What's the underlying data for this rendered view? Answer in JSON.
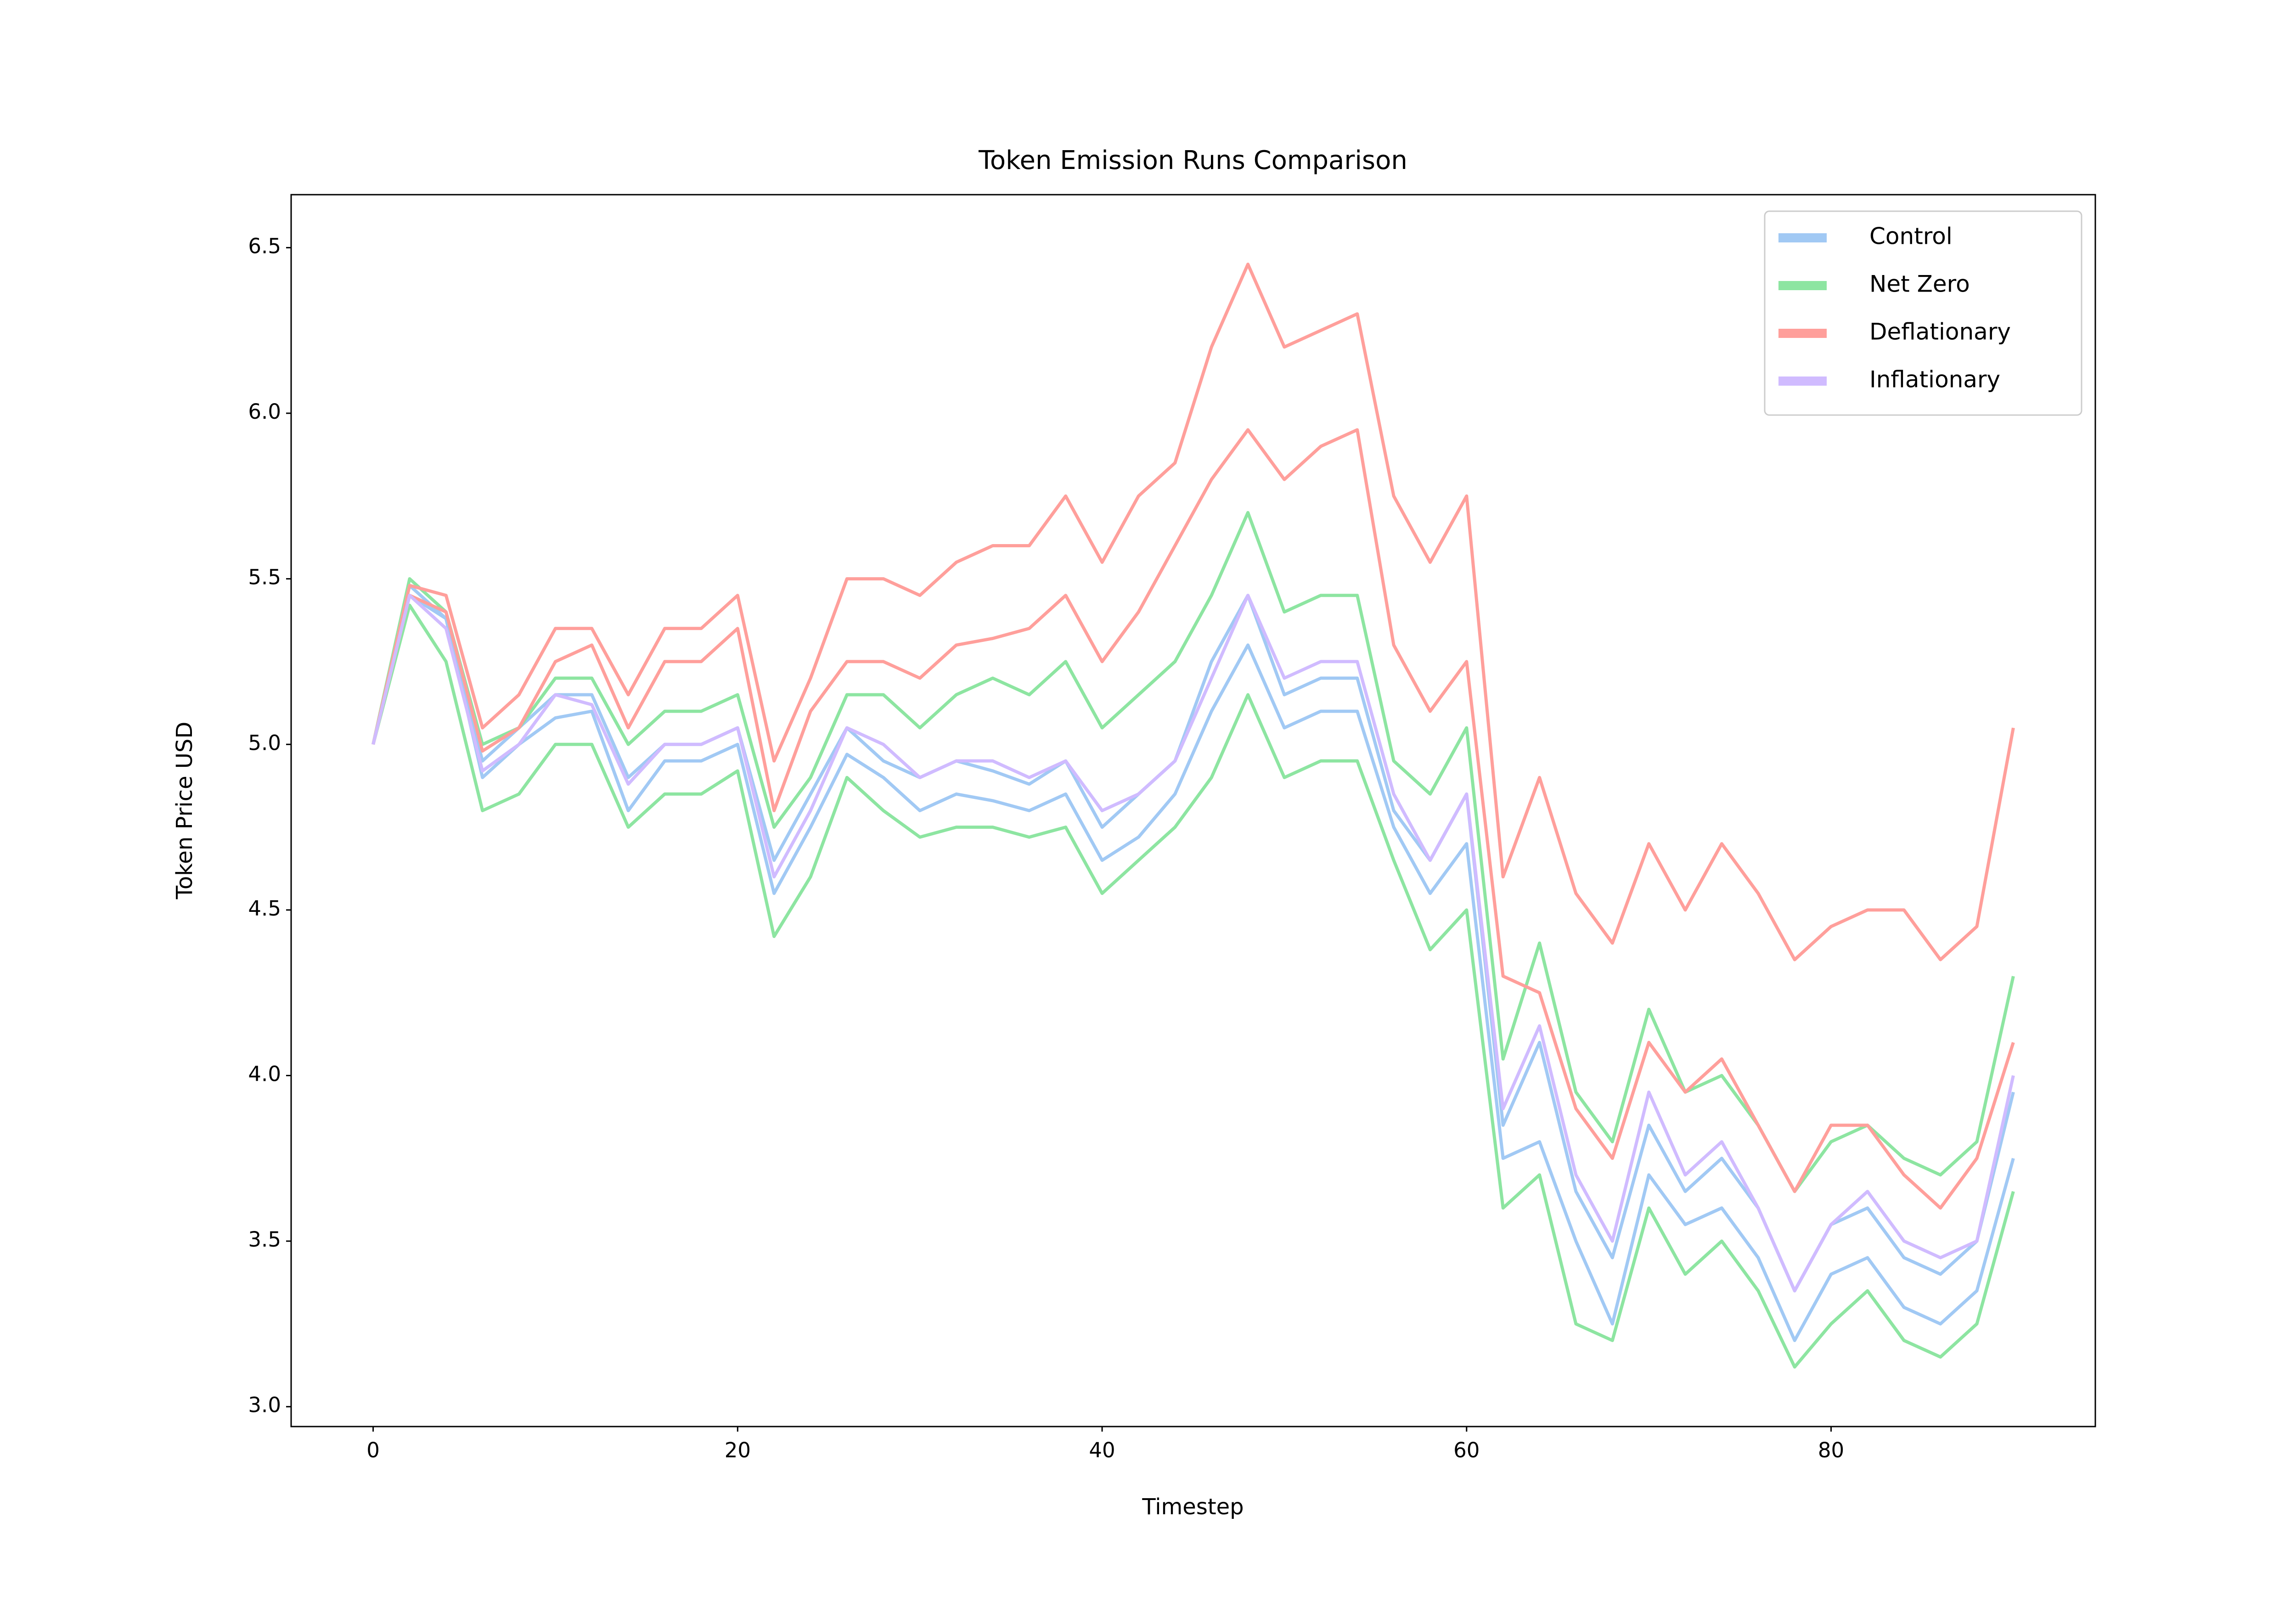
{
  "chart_data": {
    "type": "line",
    "title": "Token Emission Runs Comparison",
    "x_label": "Timestep",
    "y_label": "Token Price USD",
    "x": [
      0,
      2,
      4,
      6,
      8,
      10,
      12,
      14,
      16,
      18,
      20,
      22,
      24,
      26,
      28,
      30,
      32,
      34,
      36,
      38,
      40,
      42,
      44,
      46,
      48,
      50,
      52,
      54,
      56,
      58,
      60,
      62,
      64,
      66,
      68,
      70,
      72,
      74,
      76,
      78,
      80,
      82,
      84,
      86,
      88,
      90
    ],
    "xlim": [
      -4.5,
      94.5
    ],
    "xticks": [
      0,
      20,
      40,
      60,
      80
    ],
    "ylim": [
      2.94,
      6.66
    ],
    "yticks": [
      {
        "value": 3,
        "label": "3.0"
      },
      3.5,
      {
        "value": 4,
        "label": "4.0"
      },
      4.5,
      {
        "value": 5,
        "label": "5.0"
      },
      5.5,
      {
        "value": 6,
        "label": "6.0"
      },
      6.5
    ],
    "legend": "upper right",
    "grid": false,
    "series": [
      {
        "name": "Control",
        "color": "#a1c9f4",
        "values": [
          [
            5.0,
            5.45,
            5.38,
            4.9,
            5.0,
            5.08,
            5.1,
            4.8,
            4.95,
            4.95,
            5.0,
            4.55,
            4.75,
            4.97,
            4.9,
            4.8,
            4.85,
            4.83,
            4.8,
            4.85,
            4.65,
            4.72,
            4.85,
            5.1,
            5.3,
            5.05,
            5.1,
            5.1,
            4.75,
            4.55,
            4.7,
            3.75,
            3.8,
            3.5,
            3.25,
            3.7,
            3.55,
            3.6,
            3.45,
            3.2,
            3.4,
            3.45,
            3.3,
            3.25,
            3.35,
            3.75
          ],
          [
            5.0,
            5.48,
            5.38,
            4.95,
            5.05,
            5.15,
            5.15,
            4.9,
            5.0,
            5.0,
            5.05,
            4.65,
            4.85,
            5.05,
            4.95,
            4.9,
            4.95,
            4.92,
            4.88,
            4.95,
            4.75,
            4.85,
            4.95,
            5.25,
            5.45,
            5.15,
            5.2,
            5.2,
            4.8,
            4.65,
            4.85,
            3.85,
            4.1,
            3.65,
            3.45,
            3.85,
            3.65,
            3.75,
            3.6,
            3.35,
            3.55,
            3.6,
            3.45,
            3.4,
            3.5,
            3.95
          ]
        ]
      },
      {
        "name": "Net Zero",
        "color": "#8de5a1",
        "values": [
          [
            5.0,
            5.42,
            5.25,
            4.8,
            4.85,
            5.0,
            5.0,
            4.75,
            4.85,
            4.85,
            4.92,
            4.42,
            4.6,
            4.9,
            4.8,
            4.72,
            4.75,
            4.75,
            4.72,
            4.75,
            4.55,
            4.65,
            4.75,
            4.9,
            5.15,
            4.9,
            4.95,
            4.95,
            4.65,
            4.38,
            4.5,
            3.6,
            3.7,
            3.25,
            3.2,
            3.6,
            3.4,
            3.5,
            3.35,
            3.12,
            3.25,
            3.35,
            3.2,
            3.15,
            3.25,
            3.65
          ],
          [
            5.0,
            5.5,
            5.4,
            5.0,
            5.05,
            5.2,
            5.2,
            5.0,
            5.1,
            5.1,
            5.15,
            4.75,
            4.9,
            5.15,
            5.15,
            5.05,
            5.15,
            5.2,
            5.15,
            5.25,
            5.05,
            5.15,
            5.25,
            5.45,
            5.7,
            5.4,
            5.45,
            5.45,
            4.95,
            4.85,
            5.05,
            4.05,
            4.4,
            3.95,
            3.8,
            4.2,
            3.95,
            4.0,
            3.85,
            3.65,
            3.8,
            3.85,
            3.75,
            3.7,
            3.8,
            4.3
          ]
        ]
      },
      {
        "name": "Deflationary",
        "color": "#ff9f9b",
        "values": [
          [
            5.0,
            5.45,
            5.4,
            4.98,
            5.05,
            5.25,
            5.3,
            5.05,
            5.25,
            5.25,
            5.35,
            4.8,
            5.1,
            5.25,
            5.25,
            5.2,
            5.3,
            5.32,
            5.35,
            5.45,
            5.25,
            5.4,
            5.6,
            5.8,
            5.95,
            5.8,
            5.9,
            5.95,
            5.3,
            5.1,
            5.25,
            4.3,
            4.25,
            3.9,
            3.75,
            4.1,
            3.95,
            4.05,
            3.85,
            3.65,
            3.85,
            3.85,
            3.7,
            3.6,
            3.75,
            4.1
          ],
          [
            5.0,
            5.48,
            5.45,
            5.05,
            5.15,
            5.35,
            5.35,
            5.15,
            5.35,
            5.35,
            5.45,
            4.95,
            5.2,
            5.5,
            5.5,
            5.45,
            5.55,
            5.6,
            5.6,
            5.75,
            5.55,
            5.75,
            5.85,
            6.2,
            6.45,
            6.2,
            6.25,
            6.3,
            5.75,
            5.55,
            5.75,
            4.6,
            4.9,
            4.55,
            4.4,
            4.7,
            4.5,
            4.7,
            4.55,
            4.35,
            4.45,
            4.5,
            4.5,
            4.35,
            4.45,
            5.05
          ]
        ]
      },
      {
        "name": "Inflationary",
        "color": "#d0bbff",
        "values": [
          [
            5.0,
            5.45,
            5.35,
            4.92,
            5.0,
            5.15,
            5.12,
            4.88,
            5.0,
            5.0,
            5.05,
            4.6,
            4.8,
            5.05,
            5.0,
            4.9,
            4.95,
            4.95,
            4.9,
            4.95,
            4.8,
            4.85,
            4.95,
            5.2,
            5.45,
            5.2,
            5.25,
            5.25,
            4.85,
            4.65,
            4.85,
            3.9,
            4.15,
            3.7,
            3.5,
            3.95,
            3.7,
            3.8,
            3.6,
            3.35,
            3.55,
            3.65,
            3.5,
            3.45,
            3.5,
            4.0
          ]
        ]
      }
    ]
  }
}
